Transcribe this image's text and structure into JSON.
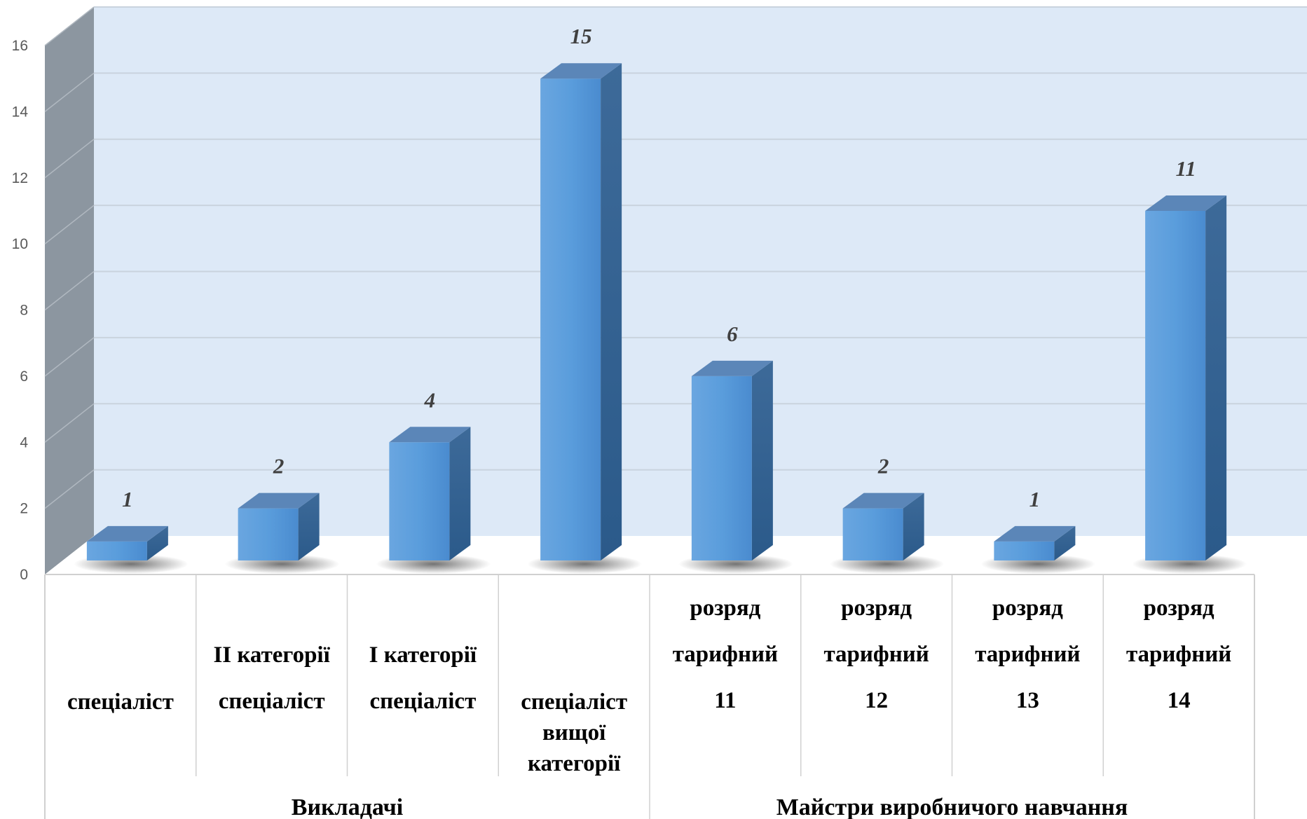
{
  "chart_data": {
    "type": "bar",
    "style": "3d-column",
    "ylim": [
      0,
      16
    ],
    "yticks": [
      "0",
      "2",
      "4",
      "6",
      "8",
      "10",
      "12",
      "14",
      "16"
    ],
    "grid": true,
    "categories": [
      {
        "lines": [
          "спеціаліст"
        ],
        "group": 0
      },
      {
        "lines": [
          "ІІ категорії",
          "спеціаліст"
        ],
        "group": 0
      },
      {
        "lines": [
          "І категорії",
          "спеціаліст"
        ],
        "group": 0
      },
      {
        "lines": [
          "спеціаліст",
          "вищої",
          "категорії"
        ],
        "group": 0
      },
      {
        "lines": [
          "розряд",
          "тарифний",
          "11"
        ],
        "group": 1
      },
      {
        "lines": [
          "розряд",
          "тарифний",
          "12"
        ],
        "group": 1
      },
      {
        "lines": [
          "розряд",
          "тарифний",
          "13"
        ],
        "group": 1
      },
      {
        "lines": [
          "розряд",
          "тарифний",
          "14"
        ],
        "group": 1
      }
    ],
    "groups": [
      "Викладачі",
      "Майстри виробничого навчання"
    ],
    "values": [
      1,
      2,
      4,
      15,
      6,
      2,
      1,
      11
    ],
    "data_labels": [
      "1",
      "2",
      "4",
      "15",
      "6",
      "2",
      "1",
      "11"
    ],
    "colors": {
      "bar_front": "#4f93d8",
      "bar_side": "#2f5f8f",
      "bar_top": "#5b86b8",
      "back_wall": "#dde9f7",
      "side_wall": "#8c96a0",
      "gridline": "#c9d3de"
    }
  }
}
